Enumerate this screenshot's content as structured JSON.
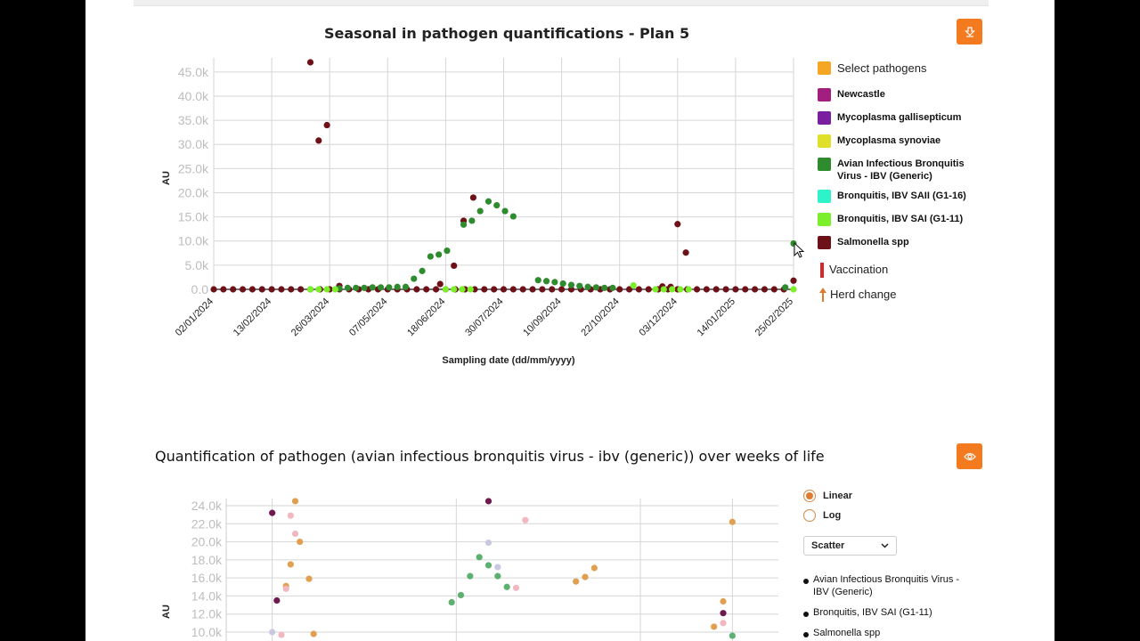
{
  "chart1": {
    "title": "Seasonal in pathogen quantifications - Plan 5",
    "ylabel": "AU",
    "xlabel": "Sampling date (dd/mm/yyyy)",
    "y_ticks": [
      "0.0",
      "5.0k",
      "10.0k",
      "15.0k",
      "20.0k",
      "25.0k",
      "30.0k",
      "35.0k",
      "40.0k",
      "45.0k"
    ],
    "x_ticks": [
      "02/01/2024",
      "13/02/2024",
      "26/03/2024",
      "07/05/2024",
      "18/06/2024",
      "30/07/2024",
      "10/09/2024",
      "22/10/2024",
      "03/12/2024",
      "14/01/2025",
      "25/02/2025"
    ],
    "legend_header": "Select pathogens",
    "legend_header_color": "#f5a623",
    "legend": [
      {
        "label": "Newcastle",
        "color": "#a31f7f"
      },
      {
        "label": "Mycoplasma gallisepticum",
        "color": "#7a1fa0"
      },
      {
        "label": "Mycoplasma synoviae",
        "color": "#e0e02a"
      },
      {
        "label": "Avian Infectious Bronquitis Virus - IBV (Generic)",
        "color": "#2e8b2e"
      },
      {
        "label": "Bronquitis, IBV SAII (G1-16)",
        "color": "#2ef2c8"
      },
      {
        "label": "Bronquitis, IBV SAI (G1-11)",
        "color": "#7aef2a"
      },
      {
        "label": "Salmonella spp",
        "color": "#6e1018"
      }
    ],
    "vaccination_label": "Vaccination",
    "herd_change_label": "Herd change",
    "download_icon": "download-icon"
  },
  "chart_data": [
    {
      "type": "scatter",
      "title": "Seasonal in pathogen quantifications - Plan 5",
      "xlabel": "Sampling date (dd/mm/yyyy)",
      "ylabel": "AU",
      "ylim": [
        0,
        47000
      ],
      "x_range": [
        "02/01/2024",
        "25/02/2025"
      ],
      "grid": true,
      "legend_position": "right",
      "series": [
        {
          "name": "Salmonella spp",
          "color": "#6e1018",
          "points": [
            [
              "02/01/2024",
              0
            ],
            [
              "09/01/2024",
              0
            ],
            [
              "16/01/2024",
              0
            ],
            [
              "23/01/2024",
              0
            ],
            [
              "30/01/2024",
              0
            ],
            [
              "06/02/2024",
              0
            ],
            [
              "13/02/2024",
              0
            ],
            [
              "20/02/2024",
              0
            ],
            [
              "27/02/2024",
              0
            ],
            [
              "05/03/2024",
              0
            ],
            [
              "12/03/2024",
              0
            ],
            [
              "19/03/2024",
              0
            ],
            [
              "26/03/2024",
              0
            ],
            [
              "02/04/2024",
              0
            ],
            [
              "09/04/2024",
              0
            ],
            [
              "16/04/2024",
              0
            ],
            [
              "23/04/2024",
              0
            ],
            [
              "30/04/2024",
              0
            ],
            [
              "07/05/2024",
              0
            ],
            [
              "14/05/2024",
              0
            ],
            [
              "21/05/2024",
              0
            ],
            [
              "28/05/2024",
              0
            ],
            [
              "04/06/2024",
              0
            ],
            [
              "11/06/2024",
              0
            ],
            [
              "18/06/2024",
              0
            ],
            [
              "25/06/2024",
              0
            ],
            [
              "02/07/2024",
              0
            ],
            [
              "09/07/2024",
              0
            ],
            [
              "16/07/2024",
              0
            ],
            [
              "23/07/2024",
              0
            ],
            [
              "30/07/2024",
              0
            ],
            [
              "06/08/2024",
              0
            ],
            [
              "13/08/2024",
              0
            ],
            [
              "20/08/2024",
              0
            ],
            [
              "27/08/2024",
              0
            ],
            [
              "03/09/2024",
              0
            ],
            [
              "10/09/2024",
              0
            ],
            [
              "17/09/2024",
              0
            ],
            [
              "24/09/2024",
              0
            ],
            [
              "01/10/2024",
              0
            ],
            [
              "08/10/2024",
              0
            ],
            [
              "15/10/2024",
              0
            ],
            [
              "22/10/2024",
              0
            ],
            [
              "29/10/2024",
              0
            ],
            [
              "05/11/2024",
              0
            ],
            [
              "12/11/2024",
              0
            ],
            [
              "19/11/2024",
              0
            ],
            [
              "26/11/2024",
              0
            ],
            [
              "03/12/2024",
              0
            ],
            [
              "10/12/2024",
              0
            ],
            [
              "17/12/2024",
              0
            ],
            [
              "24/12/2024",
              0
            ],
            [
              "31/12/2024",
              0
            ],
            [
              "07/01/2025",
              0
            ],
            [
              "14/01/2025",
              0
            ],
            [
              "21/01/2025",
              0
            ],
            [
              "28/01/2025",
              0
            ],
            [
              "04/02/2025",
              0
            ],
            [
              "11/02/2025",
              0
            ],
            [
              "18/02/2025",
              0
            ],
            [
              "12/03/2024",
              47000
            ],
            [
              "18/03/2024",
              30800
            ],
            [
              "24/03/2024",
              34000
            ],
            [
              "02/04/2024",
              700
            ],
            [
              "14/06/2024",
              1100
            ],
            [
              "24/06/2024",
              4900
            ],
            [
              "01/07/2024",
              14200
            ],
            [
              "08/07/2024",
              19000
            ],
            [
              "22/11/2024",
              600
            ],
            [
              "28/11/2024",
              500
            ],
            [
              "03/12/2024",
              13500
            ],
            [
              "09/12/2024",
              7600
            ],
            [
              "25/02/2025",
              1800
            ]
          ]
        },
        {
          "name": "Avian Infectious Bronquitis Virus - IBV (Generic)",
          "color": "#2e8b2e",
          "points": [
            [
              "02/04/2024",
              200
            ],
            [
              "08/04/2024",
              300
            ],
            [
              "14/04/2024",
              300
            ],
            [
              "20/04/2024",
              300
            ],
            [
              "26/04/2024",
              400
            ],
            [
              "02/05/2024",
              400
            ],
            [
              "08/05/2024",
              400
            ],
            [
              "14/05/2024",
              500
            ],
            [
              "20/05/2024",
              500
            ],
            [
              "26/05/2024",
              2200
            ],
            [
              "01/06/2024",
              3800
            ],
            [
              "07/06/2024",
              6800
            ],
            [
              "13/06/2024",
              7200
            ],
            [
              "19/06/2024",
              8000
            ],
            [
              "01/07/2024",
              13400
            ],
            [
              "07/07/2024",
              14200
            ],
            [
              "13/07/2024",
              16200
            ],
            [
              "19/07/2024",
              18200
            ],
            [
              "25/07/2024",
              17400
            ],
            [
              "31/07/2024",
              16200
            ],
            [
              "06/08/2024",
              15100
            ],
            [
              "24/08/2024",
              1900
            ],
            [
              "30/08/2024",
              1700
            ],
            [
              "05/09/2024",
              1500
            ],
            [
              "11/09/2024",
              1200
            ],
            [
              "17/09/2024",
              900
            ],
            [
              "23/09/2024",
              700
            ],
            [
              "29/09/2024",
              500
            ],
            [
              "05/10/2024",
              400
            ],
            [
              "11/10/2024",
              300
            ],
            [
              "17/10/2024",
              300
            ],
            [
              "19/02/2025",
              400
            ],
            [
              "25/02/2025",
              9500
            ]
          ]
        },
        {
          "name": "Bronquitis, IBV SAI (G1-11)",
          "color": "#7aef2a",
          "points": [
            [
              "12/03/2024",
              0
            ],
            [
              "18/03/2024",
              0
            ],
            [
              "24/03/2024",
              0
            ],
            [
              "30/03/2024",
              0
            ],
            [
              "18/06/2024",
              0
            ],
            [
              "24/06/2024",
              0
            ],
            [
              "30/06/2024",
              0
            ],
            [
              "06/07/2024",
              0
            ],
            [
              "01/11/2024",
              800
            ],
            [
              "17/11/2024",
              0
            ],
            [
              "23/11/2024",
              0
            ],
            [
              "29/11/2024",
              0
            ],
            [
              "05/12/2024",
              0
            ],
            [
              "11/12/2024",
              0
            ],
            [
              "25/02/2025",
              0
            ]
          ]
        }
      ]
    },
    {
      "type": "scatter",
      "title": "Quantification of pathogen (avian infectious bronquitis virus - ibv (generic)) over weeks of life",
      "ylabel": "AU",
      "ylim": [
        10000,
        24000
      ],
      "y_scale": "linear",
      "legend_position": "right",
      "series": [
        {
          "name": "Avian Infectious Bronquitis Virus - IBV (Generic)",
          "points": []
        },
        {
          "name": "Bronquitis, IBV SAI (G1-11)",
          "points": []
        },
        {
          "name": "Salmonella spp",
          "points": []
        }
      ],
      "points": [
        {
          "x": 1.0,
          "y": 23200,
          "color": "#6e1a4e"
        },
        {
          "x": 1.05,
          "y": 13500,
          "color": "#6e1a4e"
        },
        {
          "x": 1.0,
          "y": 10000,
          "color": "#c8c8e0"
        },
        {
          "x": 1.2,
          "y": 22900,
          "color": "#f2b8c0"
        },
        {
          "x": 1.25,
          "y": 24500,
          "color": "#e0a050"
        },
        {
          "x": 1.25,
          "y": 20900,
          "color": "#f2b8c0"
        },
        {
          "x": 1.3,
          "y": 20000,
          "color": "#e0a050"
        },
        {
          "x": 1.2,
          "y": 17500,
          "color": "#e0a050"
        },
        {
          "x": 1.15,
          "y": 15100,
          "color": "#e0a050"
        },
        {
          "x": 1.15,
          "y": 14800,
          "color": "#f2b8c0"
        },
        {
          "x": 1.4,
          "y": 15900,
          "color": "#e0a050"
        },
        {
          "x": 1.1,
          "y": 9700,
          "color": "#f2b8c0"
        },
        {
          "x": 1.45,
          "y": 9800,
          "color": "#e0a050"
        },
        {
          "x": 2.95,
          "y": 13300,
          "color": "#5cb070"
        },
        {
          "x": 3.05,
          "y": 14100,
          "color": "#5cb070"
        },
        {
          "x": 3.15,
          "y": 16200,
          "color": "#5cb070"
        },
        {
          "x": 3.25,
          "y": 18300,
          "color": "#5cb070"
        },
        {
          "x": 3.35,
          "y": 17400,
          "color": "#5cb070"
        },
        {
          "x": 3.45,
          "y": 16200,
          "color": "#5cb070"
        },
        {
          "x": 3.55,
          "y": 15000,
          "color": "#5cb070"
        },
        {
          "x": 3.35,
          "y": 24500,
          "color": "#6e1a4e"
        },
        {
          "x": 3.35,
          "y": 19900,
          "color": "#c8c8e0"
        },
        {
          "x": 3.45,
          "y": 17200,
          "color": "#c8c8e0"
        },
        {
          "x": 3.65,
          "y": 14900,
          "color": "#f2b8c0"
        },
        {
          "x": 3.75,
          "y": 22400,
          "color": "#f2b8c0"
        },
        {
          "x": 4.3,
          "y": 15600,
          "color": "#e0a050"
        },
        {
          "x": 4.4,
          "y": 16100,
          "color": "#e0a050"
        },
        {
          "x": 4.5,
          "y": 17100,
          "color": "#e0a050"
        },
        {
          "x": 6.0,
          "y": 22200,
          "color": "#e0a050"
        },
        {
          "x": 5.9,
          "y": 13400,
          "color": "#e0a050"
        },
        {
          "x": 5.9,
          "y": 12100,
          "color": "#6e1a4e"
        },
        {
          "x": 5.9,
          "y": 11000,
          "color": "#f2b8c0"
        },
        {
          "x": 5.8,
          "y": 10600,
          "color": "#e0a050"
        },
        {
          "x": 6.0,
          "y": 9600,
          "color": "#5cb070"
        }
      ]
    }
  ],
  "chart2": {
    "title": "Quantification of pathogen (avian infectious bronquitis virus - ibv (generic)) over weeks of life",
    "ylabel": "AU",
    "y_ticks": [
      "10.0k",
      "12.0k",
      "14.0k",
      "16.0k",
      "18.0k",
      "20.0k",
      "22.0k",
      "24.0k"
    ],
    "scale_options": [
      {
        "label": "Linear",
        "selected": true
      },
      {
        "label": "Log",
        "selected": false
      }
    ],
    "chart_type_value": "Scatter",
    "legend": [
      "Avian Infectious Bronquitis Virus - IBV (Generic)",
      "Bronquitis, IBV SAI (G1-11)",
      "Salmonella spp"
    ],
    "view_icon": "eye-icon"
  }
}
